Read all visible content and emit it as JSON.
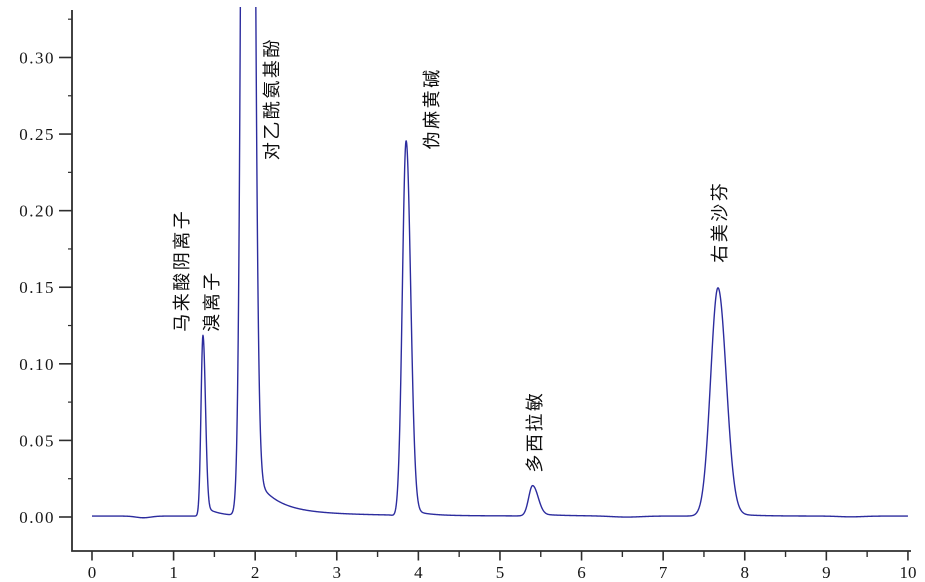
{
  "figure": {
    "background": "#ffffff",
    "description": "HPLC chromatogram, absorbance vs retention time (0-10), six labeled analyte peaks"
  },
  "chart_data": {
    "type": "line",
    "title": "",
    "xlabel": "",
    "ylabel": "",
    "grid": false,
    "legend": null,
    "xlim": [
      -0.245,
      10.013
    ],
    "ylim": [
      -0.0222,
      0.331
    ],
    "x_axis": {
      "major_ticks": [
        0,
        1,
        2,
        3,
        4,
        5,
        6,
        7,
        8,
        9,
        10
      ],
      "labels": [
        "0",
        "1",
        "2",
        "3",
        "4",
        "5",
        "6",
        "7",
        "8",
        "9",
        "10"
      ],
      "minor_ticks": [
        0.5,
        1.5,
        2.5,
        3.5,
        4.5,
        5.5,
        6.5,
        7.5,
        8.5,
        9.5
      ]
    },
    "y_axis": {
      "major_ticks": [
        0.0,
        0.05,
        0.1,
        0.15,
        0.2,
        0.25,
        0.3
      ],
      "labels": [
        "0.00",
        "0.05",
        "0.10",
        "0.15",
        "0.20",
        "0.25",
        "0.30"
      ],
      "minor_ticks": [
        0.025,
        0.075,
        0.125,
        0.175,
        0.225,
        0.275,
        0.325
      ]
    },
    "colors": {
      "trace": "#2c2c9e",
      "axis": "#2e2e2e",
      "text": "#161616"
    },
    "baseline": 0.0006,
    "baseline_dips": [
      [
        0.63,
        -0.0011,
        0.09
      ],
      [
        3.72,
        -0.0009,
        0.03
      ],
      [
        6.55,
        -0.0007,
        0.18
      ],
      [
        9.3,
        -0.0005,
        0.15
      ]
    ],
    "peaks": [
      {
        "label": "马来酸阴离子/溴离子",
        "rt": 1.36,
        "height": 0.118,
        "clipped": false,
        "sigma_l": 0.024,
        "sigma_r": 0.03,
        "tails": [
          [
            0.007,
            0.16
          ]
        ]
      },
      {
        "label": "对乙酰氨基酚",
        "rt": 1.905,
        "height": 1.5,
        "clipped": true,
        "sigma_l": 0.05,
        "sigma_r": 0.058,
        "tails": [
          [
            0.03,
            0.24
          ],
          [
            0.0055,
            0.85
          ]
        ]
      },
      {
        "label": "伪麻黄碱",
        "rt": 3.85,
        "height": 0.2445,
        "clipped": false,
        "sigma_l": 0.046,
        "sigma_r": 0.055,
        "tails": [
          [
            0.005,
            0.18
          ]
        ]
      },
      {
        "label": "多西拉敏",
        "rt": 5.4,
        "height": 0.0198,
        "clipped": false,
        "sigma_l": 0.048,
        "sigma_r": 0.065,
        "tails": [
          [
            0.0015,
            0.3
          ]
        ]
      },
      {
        "label": "右美沙芬",
        "rt": 7.672,
        "height": 0.149,
        "clipped": false,
        "sigma_l": 0.09,
        "sigma_r": 0.1,
        "tails": [
          [
            0.003,
            0.25
          ]
        ]
      }
    ],
    "annotations": [
      {
        "text": "马来酸阴离子",
        "x": 1.091,
        "y": 0.121
      },
      {
        "text": "溴离子",
        "x": 1.458,
        "y": 0.121
      },
      {
        "text": "对乙酰氨基酚",
        "x": 2.194,
        "y": 0.233
      },
      {
        "text": "伪麻黄碱",
        "x": 4.155,
        "y": 0.24
      },
      {
        "text": "多西拉敏",
        "x": 5.417,
        "y": 0.029
      },
      {
        "text": "右美沙芬",
        "x": 7.684,
        "y": 0.166
      }
    ]
  }
}
